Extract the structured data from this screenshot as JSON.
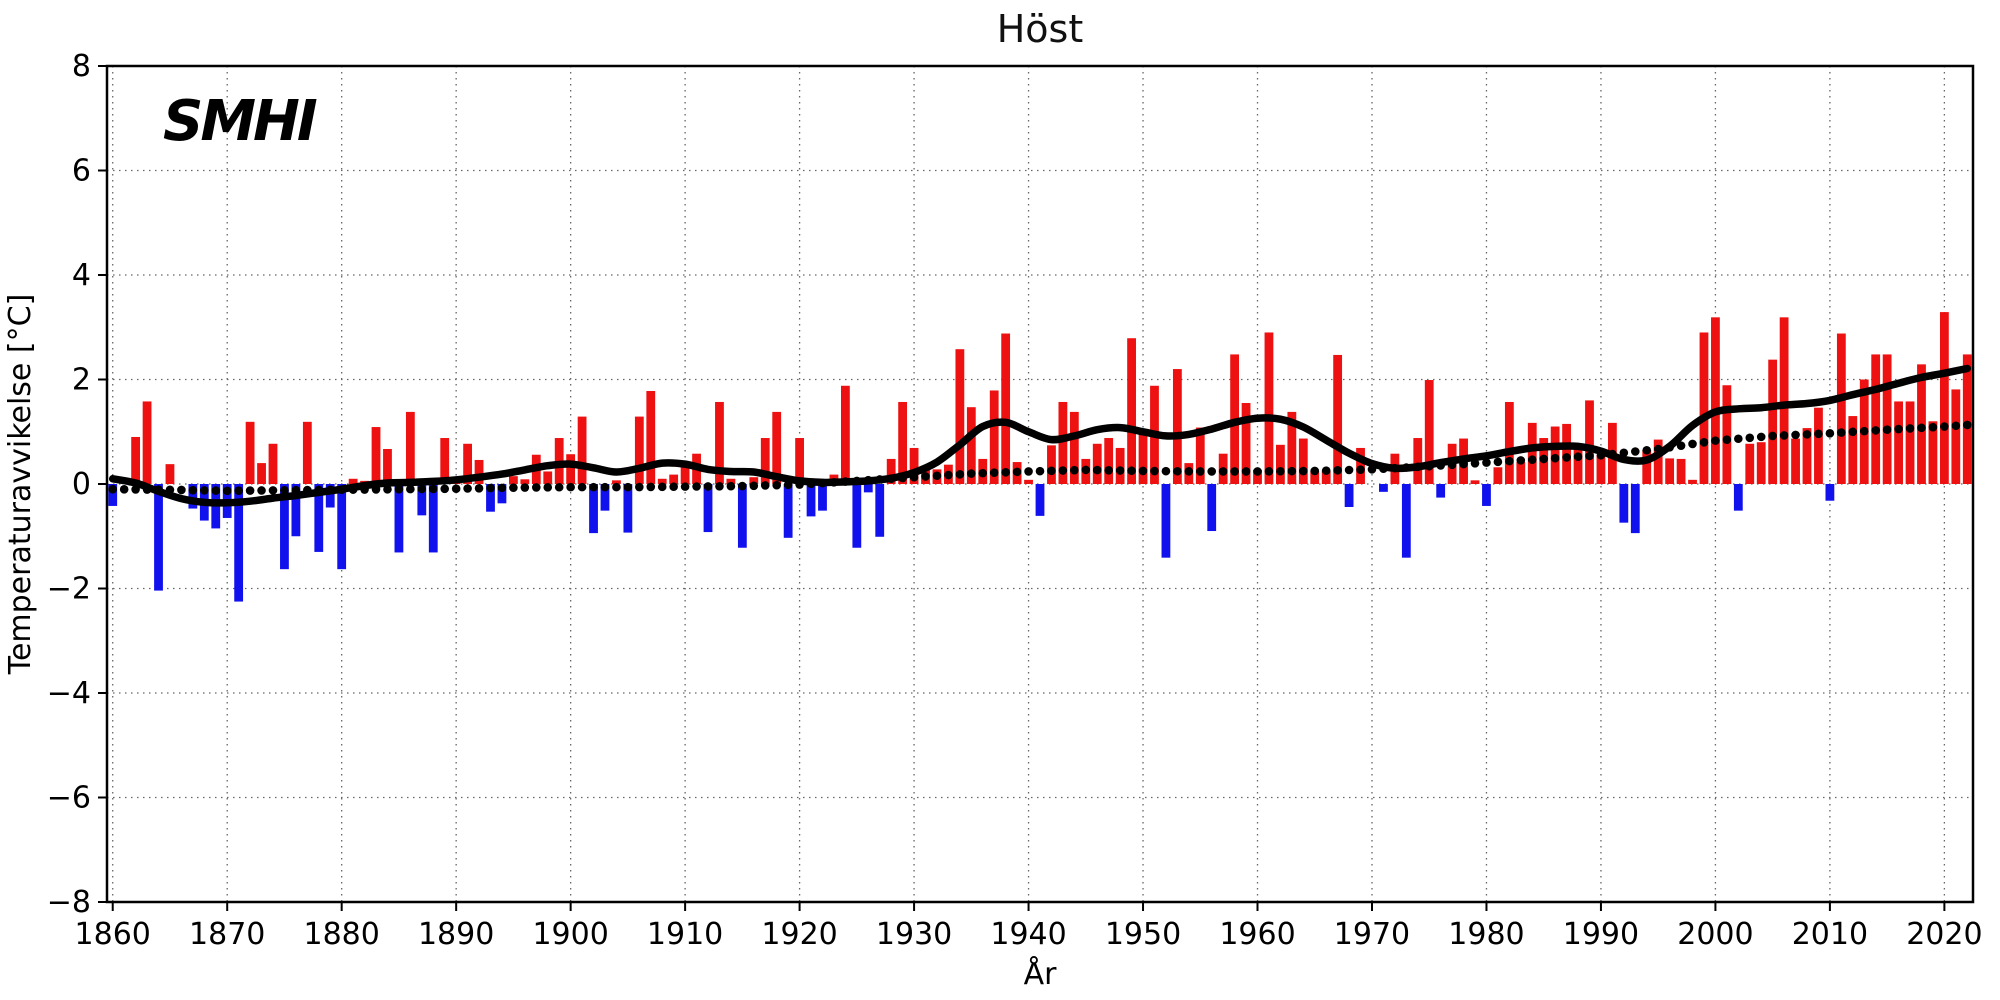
{
  "page": {
    "background": "#ffffff"
  },
  "logo": {
    "text": "SMHI"
  },
  "chart_data": {
    "type": "bar",
    "title": "Höst",
    "xlabel": "År",
    "ylabel": "Temperaturavvikelse [°C]",
    "xlim": [
      1859.5,
      2022.5
    ],
    "ylim": [
      -8,
      8
    ],
    "grid": true,
    "legend_position": "none",
    "colors": {
      "positive_bar": "#ee1111",
      "negative_bar": "#1111ee",
      "smoothed_curve": "#000000",
      "trend_dots": "#000000",
      "gridline": "#666666",
      "spine": "#000000",
      "background": "#ffffff"
    },
    "x_ticks": [
      1860,
      1870,
      1880,
      1890,
      1900,
      1910,
      1920,
      1930,
      1940,
      1950,
      1960,
      1970,
      1980,
      1990,
      2000,
      2010,
      2020
    ],
    "x_tick_labels": [
      "1860",
      "1870",
      "1880",
      "1890",
      "1900",
      "1910",
      "1920",
      "1930",
      "1940",
      "1950",
      "1960",
      "1970",
      "1980",
      "1990",
      "2000",
      "2010",
      "2020"
    ],
    "y_ticks": [
      8,
      6,
      4,
      2,
      0,
      -2,
      -4,
      -6,
      -8
    ],
    "y_tick_labels": [
      "8",
      "6",
      "4",
      "2",
      "0",
      "−2",
      "−4",
      "−6",
      "−8"
    ],
    "bars": {
      "unit": "°C anomaly",
      "years": [
        1860,
        1861,
        1862,
        1863,
        1864,
        1865,
        1866,
        1867,
        1868,
        1869,
        1870,
        1871,
        1872,
        1873,
        1874,
        1875,
        1876,
        1877,
        1878,
        1879,
        1880,
        1881,
        1882,
        1883,
        1884,
        1885,
        1886,
        1887,
        1888,
        1889,
        1890,
        1891,
        1892,
        1893,
        1894,
        1895,
        1896,
        1897,
        1898,
        1899,
        1900,
        1901,
        1902,
        1903,
        1904,
        1905,
        1906,
        1907,
        1908,
        1909,
        1910,
        1911,
        1912,
        1913,
        1914,
        1915,
        1916,
        1917,
        1918,
        1919,
        1920,
        1921,
        1922,
        1923,
        1924,
        1925,
        1926,
        1927,
        1928,
        1929,
        1930,
        1931,
        1932,
        1933,
        1934,
        1935,
        1936,
        1937,
        1938,
        1939,
        1940,
        1941,
        1942,
        1943,
        1944,
        1945,
        1946,
        1947,
        1948,
        1949,
        1950,
        1951,
        1952,
        1953,
        1954,
        1955,
        1956,
        1957,
        1958,
        1959,
        1960,
        1961,
        1962,
        1963,
        1964,
        1965,
        1966,
        1967,
        1968,
        1969,
        1970,
        1971,
        1972,
        1973,
        1974,
        1975,
        1976,
        1977,
        1978,
        1979,
        1980,
        1981,
        1982,
        1983,
        1984,
        1985,
        1986,
        1987,
        1988,
        1989,
        1990,
        1991,
        1992,
        1993,
        1994,
        1995,
        1996,
        1997,
        1998,
        1999,
        2000,
        2001,
        2002,
        2003,
        2004,
        2005,
        2006,
        2007,
        2008,
        2009,
        2010,
        2011,
        2012,
        2013,
        2014,
        2015,
        2016,
        2017,
        2018,
        2019,
        2020,
        2021,
        2022
      ],
      "values": [
        -0.42,
        0,
        0.9,
        1.58,
        -2.04,
        0.38,
        0,
        -0.47,
        -0.7,
        -0.85,
        -0.65,
        -2.25,
        1.19,
        0.4,
        0.77,
        -1.63,
        -1.0,
        1.19,
        -1.3,
        -0.45,
        -1.63,
        0.1,
        0.06,
        1.09,
        0.67,
        -1.31,
        1.38,
        -0.6,
        -1.31,
        0.88,
        0.1,
        0.77,
        0.46,
        -0.53,
        -0.37,
        0.15,
        0.09,
        0.56,
        0.24,
        0.88,
        0.57,
        1.29,
        -0.94,
        -0.51,
        0.07,
        -0.93,
        1.29,
        1.78,
        0.1,
        0.18,
        0.32,
        0.58,
        -0.92,
        1.57,
        0.1,
        -1.22,
        0.13,
        0.88,
        1.38,
        -1.03,
        0.88,
        -0.62,
        -0.51,
        0.18,
        1.88,
        -1.22,
        -0.16,
        -1.01,
        0.48,
        1.57,
        0.69,
        0.28,
        0.28,
        0.37,
        2.58,
        1.47,
        0.48,
        1.79,
        2.88,
        0.42,
        0.08,
        -0.61,
        0.74,
        1.57,
        1.38,
        0.48,
        0.77,
        0.88,
        0.69,
        2.79,
        1.03,
        1.88,
        -1.41,
        2.2,
        0.4,
        1.08,
        -0.9,
        0.58,
        2.48,
        1.55,
        0.27,
        2.9,
        0.75,
        1.38,
        0.87,
        0.25,
        0.25,
        2.47,
        -0.44,
        0.69,
        0,
        -0.15,
        0.58,
        -1.41,
        0.88,
        1.99,
        -0.26,
        0.77,
        0.87,
        0.07,
        -0.42,
        0.32,
        1.57,
        0.42,
        1.17,
        0.88,
        1.1,
        1.15,
        0.72,
        1.6,
        0.55,
        1.17,
        -0.74,
        -0.94,
        0.65,
        0.85,
        0.49,
        0.48,
        0.08,
        2.9,
        3.19,
        1.89,
        -0.51,
        0.77,
        0.8,
        2.38,
        3.19,
        0.87,
        1.07,
        1.46,
        -0.32,
        2.88,
        1.3,
        2.0,
        2.48,
        2.48,
        1.58,
        1.58,
        2.29,
        1.2,
        3.29,
        1.81,
        2.48
      ]
    },
    "smoothed_curve": {
      "description": "thick black smoothed (approx. 10-year filtered) curve",
      "points": [
        [
          1860,
          0.1
        ],
        [
          1862,
          0.02
        ],
        [
          1864,
          -0.14
        ],
        [
          1866,
          -0.28
        ],
        [
          1868,
          -0.35
        ],
        [
          1870,
          -0.36
        ],
        [
          1872,
          -0.33
        ],
        [
          1874,
          -0.27
        ],
        [
          1876,
          -0.22
        ],
        [
          1878,
          -0.16
        ],
        [
          1880,
          -0.1
        ],
        [
          1882,
          -0.03
        ],
        [
          1884,
          0.02
        ],
        [
          1886,
          0.03
        ],
        [
          1888,
          0.05
        ],
        [
          1890,
          0.08
        ],
        [
          1892,
          0.13
        ],
        [
          1894,
          0.19
        ],
        [
          1896,
          0.27
        ],
        [
          1898,
          0.35
        ],
        [
          1900,
          0.38
        ],
        [
          1902,
          0.31
        ],
        [
          1904,
          0.23
        ],
        [
          1906,
          0.3
        ],
        [
          1908,
          0.4
        ],
        [
          1910,
          0.38
        ],
        [
          1912,
          0.28
        ],
        [
          1914,
          0.24
        ],
        [
          1916,
          0.23
        ],
        [
          1918,
          0.14
        ],
        [
          1920,
          0.06
        ],
        [
          1922,
          0.03
        ],
        [
          1924,
          0.04
        ],
        [
          1926,
          0.06
        ],
        [
          1928,
          0.11
        ],
        [
          1930,
          0.22
        ],
        [
          1932,
          0.42
        ],
        [
          1934,
          0.75
        ],
        [
          1936,
          1.1
        ],
        [
          1938,
          1.18
        ],
        [
          1940,
          1.0
        ],
        [
          1942,
          0.85
        ],
        [
          1944,
          0.92
        ],
        [
          1946,
          1.04
        ],
        [
          1948,
          1.08
        ],
        [
          1950,
          1.0
        ],
        [
          1952,
          0.92
        ],
        [
          1954,
          0.95
        ],
        [
          1956,
          1.05
        ],
        [
          1958,
          1.18
        ],
        [
          1960,
          1.26
        ],
        [
          1962,
          1.24
        ],
        [
          1964,
          1.09
        ],
        [
          1966,
          0.84
        ],
        [
          1968,
          0.59
        ],
        [
          1970,
          0.39
        ],
        [
          1972,
          0.3
        ],
        [
          1974,
          0.33
        ],
        [
          1976,
          0.41
        ],
        [
          1978,
          0.48
        ],
        [
          1980,
          0.54
        ],
        [
          1982,
          0.62
        ],
        [
          1984,
          0.69
        ],
        [
          1986,
          0.72
        ],
        [
          1988,
          0.72
        ],
        [
          1990,
          0.63
        ],
        [
          1992,
          0.47
        ],
        [
          1994,
          0.46
        ],
        [
          1996,
          0.72
        ],
        [
          1998,
          1.12
        ],
        [
          2000,
          1.38
        ],
        [
          2002,
          1.44
        ],
        [
          2004,
          1.46
        ],
        [
          2006,
          1.51
        ],
        [
          2008,
          1.54
        ],
        [
          2010,
          1.6
        ],
        [
          2012,
          1.71
        ],
        [
          2014,
          1.81
        ],
        [
          2016,
          1.93
        ],
        [
          2018,
          2.04
        ],
        [
          2020,
          2.12
        ],
        [
          2022,
          2.21
        ]
      ]
    },
    "trend_dots": {
      "description": "black dotted slowly-rising trend line, one dot per year",
      "dot_years_start": 1860,
      "dot_years_end": 2022,
      "points": [
        [
          1860,
          -0.1
        ],
        [
          1865,
          -0.11
        ],
        [
          1870,
          -0.13
        ],
        [
          1875,
          -0.12
        ],
        [
          1880,
          -0.11
        ],
        [
          1885,
          -0.1
        ],
        [
          1890,
          -0.09
        ],
        [
          1895,
          -0.07
        ],
        [
          1900,
          -0.06
        ],
        [
          1905,
          -0.06
        ],
        [
          1910,
          -0.05
        ],
        [
          1915,
          -0.04
        ],
        [
          1920,
          -0.01
        ],
        [
          1925,
          0.06
        ],
        [
          1930,
          0.13
        ],
        [
          1935,
          0.2
        ],
        [
          1940,
          0.24
        ],
        [
          1945,
          0.27
        ],
        [
          1950,
          0.25
        ],
        [
          1955,
          0.24
        ],
        [
          1960,
          0.24
        ],
        [
          1965,
          0.25
        ],
        [
          1970,
          0.28
        ],
        [
          1975,
          0.34
        ],
        [
          1980,
          0.41
        ],
        [
          1985,
          0.48
        ],
        [
          1990,
          0.55
        ],
        [
          1995,
          0.67
        ],
        [
          2000,
          0.83
        ],
        [
          2005,
          0.92
        ],
        [
          2010,
          0.97
        ],
        [
          2015,
          1.04
        ],
        [
          2020,
          1.1
        ],
        [
          2022,
          1.13
        ]
      ]
    }
  }
}
